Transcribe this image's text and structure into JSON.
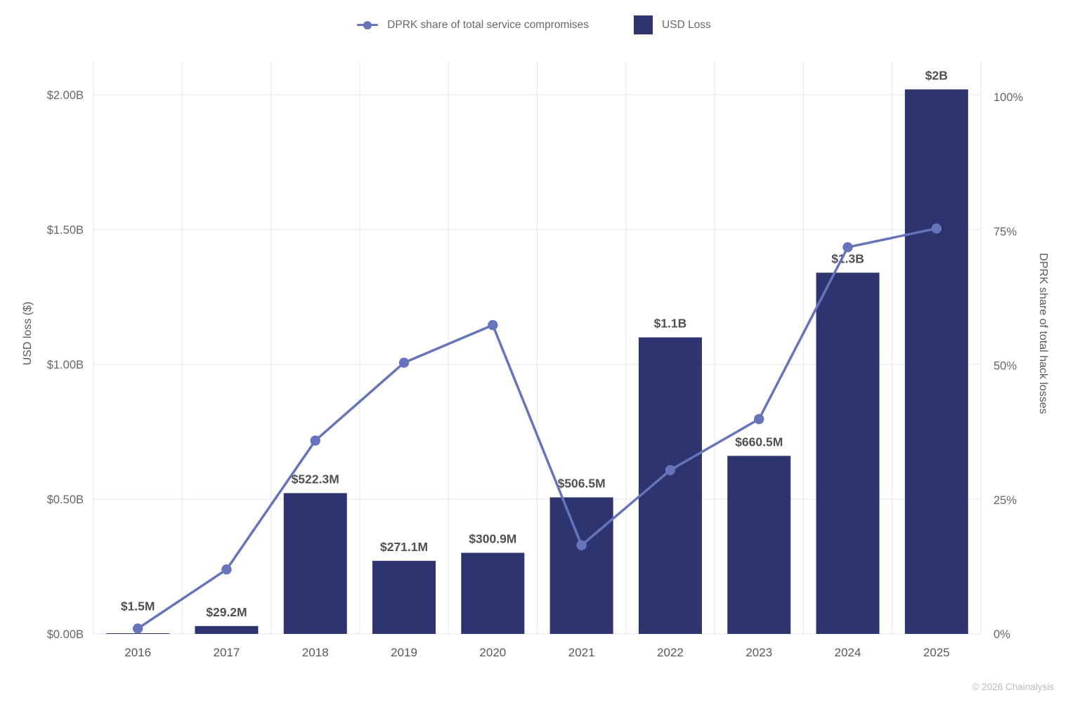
{
  "legend": {
    "line_label": "DPRK share of total service compromises",
    "bar_label": "USD Loss"
  },
  "footer": {
    "copyright": "© 2026 Chainalysis"
  },
  "colors": {
    "bar": "#2d3470",
    "line": "#6674b9",
    "grid": "#e4e5e9",
    "tick_text": "#63676b",
    "x_tick_text": "#55595d",
    "bar_label_text": "#4d5154"
  },
  "chart_data": {
    "type": "bar",
    "subtype": "bar-and-line-dual-axis",
    "categories": [
      "2016",
      "2017",
      "2018",
      "2019",
      "2020",
      "2021",
      "2022",
      "2023",
      "2024",
      "2025"
    ],
    "series": [
      {
        "name": "USD Loss",
        "type": "bar",
        "axis": "left",
        "unit": "USD billions",
        "values": [
          0.0015,
          0.0292,
          0.5223,
          0.2711,
          0.3009,
          0.5065,
          1.1,
          0.6605,
          1.34,
          2.02
        ],
        "labels": [
          "$1.5M",
          "$29.2M",
          "$522.3M",
          "$271.1M",
          "$300.9M",
          "$506.5M",
          "$1.1B",
          "$660.5M",
          "$1.3B",
          "$2B"
        ]
      },
      {
        "name": "DPRK share of total service compromises",
        "type": "line",
        "axis": "right",
        "unit": "percent",
        "values": [
          1,
          12,
          36,
          50.5,
          57.5,
          16.5,
          30.5,
          40,
          72,
          75.5
        ]
      }
    ],
    "left_axis": {
      "title": "USD loss ($)",
      "ticks": [
        "$0.00B",
        "$0.50B",
        "$1.00B",
        "$1.50B",
        "$2.00B"
      ],
      "tick_values": [
        0,
        0.5,
        1.0,
        1.5,
        2.0
      ],
      "range": [
        0,
        2.0
      ]
    },
    "right_axis": {
      "title": "DPRK share of total hack losses",
      "ticks": [
        "0%",
        "25%",
        "50%",
        "75%",
        "100%"
      ],
      "tick_values": [
        0,
        25,
        50,
        75,
        100
      ],
      "range": [
        0,
        100
      ]
    },
    "grid": true,
    "legend_position": "top-center"
  }
}
